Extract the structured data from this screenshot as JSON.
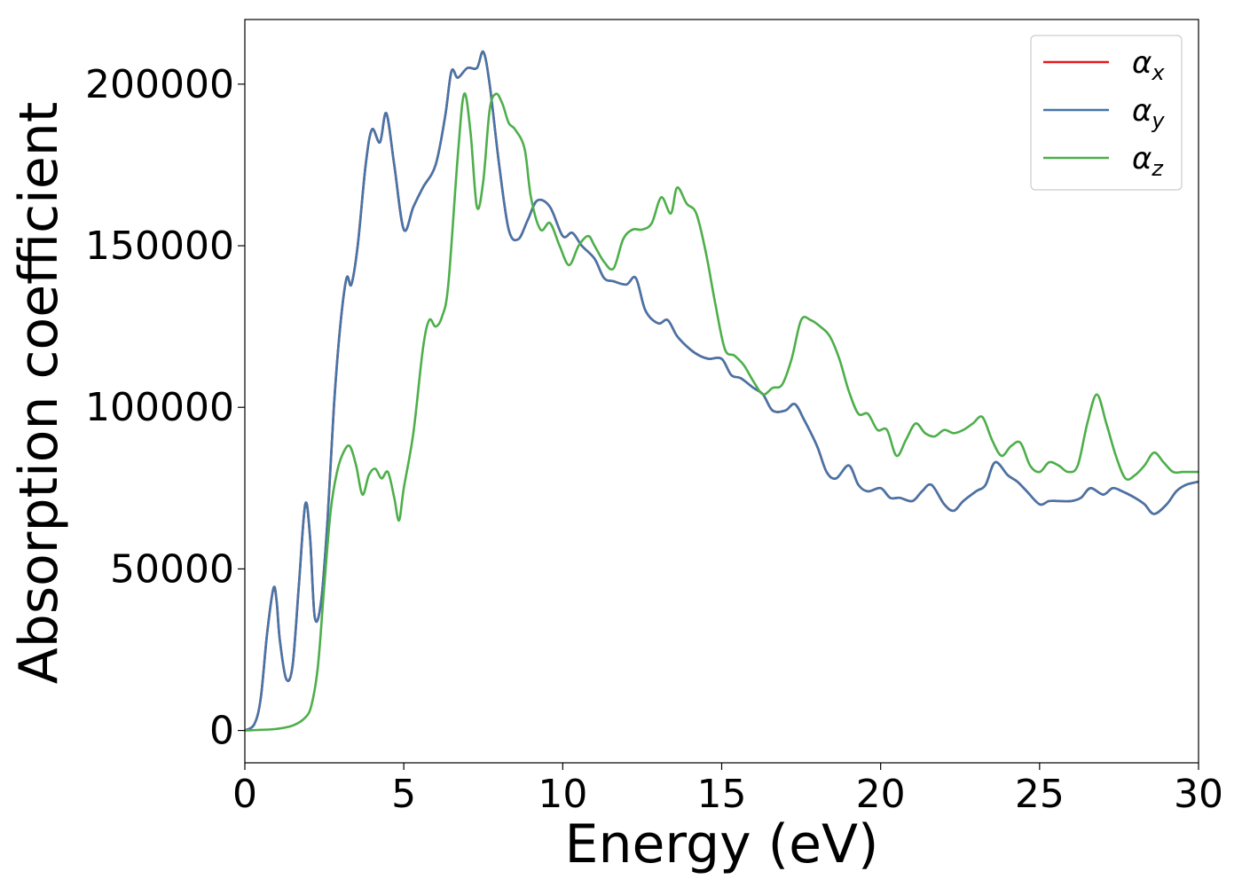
{
  "chart_data": {
    "type": "line",
    "title": "",
    "xlabel": "Energy (eV)",
    "ylabel": "Absorption coefficient",
    "xlim": [
      0,
      30
    ],
    "ylim": [
      -10000,
      220000
    ],
    "xticks": [
      0,
      5,
      10,
      15,
      20,
      25,
      30
    ],
    "xtick_labels": [
      "0",
      "5",
      "10",
      "15",
      "20",
      "25",
      "30"
    ],
    "yticks": [
      0,
      50000,
      100000,
      150000,
      200000
    ],
    "ytick_labels": [
      "0",
      "50000",
      "100000",
      "150000",
      "200000"
    ],
    "grid": false,
    "legend_position": "top-right",
    "series": [
      {
        "name": "α_x",
        "legend_symbol": "α",
        "legend_sub": "x",
        "color": "#e41a1c",
        "x": [
          0,
          0.3,
          0.5,
          0.7,
          0.9,
          1.0,
          1.1,
          1.3,
          1.5,
          1.7,
          1.9,
          2.05,
          2.2,
          2.4,
          2.6,
          2.8,
          3.0,
          3.2,
          3.35,
          3.55,
          3.8,
          4.0,
          4.25,
          4.45,
          4.7,
          5.0,
          5.3,
          5.6,
          6.0,
          6.3,
          6.5,
          6.7,
          7.0,
          7.3,
          7.5,
          7.7,
          8.0,
          8.3,
          8.6,
          8.9,
          9.2,
          9.6,
          10.0,
          10.3,
          10.6,
          11.0,
          11.3,
          11.6,
          12.0,
          12.3,
          12.6,
          13.0,
          13.3,
          13.6,
          14.0,
          14.3,
          14.6,
          15.0,
          15.3,
          15.6,
          16.0,
          16.3,
          16.6,
          17.0,
          17.3,
          17.6,
          18.0,
          18.3,
          18.6,
          19.0,
          19.3,
          19.6,
          20.0,
          20.3,
          20.6,
          21.0,
          21.3,
          21.6,
          22.0,
          22.3,
          22.6,
          23.0,
          23.3,
          23.6,
          24.0,
          24.3,
          24.6,
          25.0,
          25.3,
          25.6,
          26.0,
          26.3,
          26.6,
          27.0,
          27.3,
          27.6,
          28.0,
          28.3,
          28.6,
          29.0,
          29.3,
          29.6,
          30.0
        ],
        "values": [
          0,
          2000,
          10000,
          30000,
          44000,
          40000,
          28000,
          16000,
          20000,
          45000,
          70000,
          60000,
          35000,
          40000,
          65000,
          100000,
          125000,
          140000,
          138000,
          150000,
          175000,
          186000,
          182000,
          191000,
          175000,
          155000,
          162000,
          168000,
          175000,
          190000,
          204000,
          202000,
          205000,
          205000,
          210000,
          200000,
          175000,
          155000,
          152000,
          158000,
          164000,
          162000,
          153000,
          154000,
          150000,
          146000,
          140000,
          139000,
          138000,
          140000,
          130000,
          126000,
          127000,
          122000,
          118000,
          116000,
          115000,
          115000,
          110000,
          109000,
          106000,
          104000,
          99000,
          99000,
          101000,
          96000,
          88000,
          80000,
          78000,
          82000,
          76000,
          74000,
          75000,
          72000,
          72000,
          71000,
          74000,
          76000,
          70000,
          68000,
          71000,
          74000,
          76000,
          83000,
          79000,
          77000,
          74000,
          70000,
          71000,
          71000,
          71000,
          72000,
          75000,
          73000,
          75000,
          74000,
          72000,
          70000,
          67000,
          70000,
          74000,
          76000,
          77000
        ]
      },
      {
        "name": "α_y",
        "legend_symbol": "α",
        "legend_sub": "y",
        "color": "#4575a8",
        "x": [
          0,
          0.3,
          0.5,
          0.7,
          0.9,
          1.0,
          1.1,
          1.3,
          1.5,
          1.7,
          1.9,
          2.05,
          2.2,
          2.4,
          2.6,
          2.8,
          3.0,
          3.2,
          3.35,
          3.55,
          3.8,
          4.0,
          4.25,
          4.45,
          4.7,
          5.0,
          5.3,
          5.6,
          6.0,
          6.3,
          6.5,
          6.7,
          7.0,
          7.3,
          7.5,
          7.7,
          8.0,
          8.3,
          8.6,
          8.9,
          9.2,
          9.6,
          10.0,
          10.3,
          10.6,
          11.0,
          11.3,
          11.6,
          12.0,
          12.3,
          12.6,
          13.0,
          13.3,
          13.6,
          14.0,
          14.3,
          14.6,
          15.0,
          15.3,
          15.6,
          16.0,
          16.3,
          16.6,
          17.0,
          17.3,
          17.6,
          18.0,
          18.3,
          18.6,
          19.0,
          19.3,
          19.6,
          20.0,
          20.3,
          20.6,
          21.0,
          21.3,
          21.6,
          22.0,
          22.3,
          22.6,
          23.0,
          23.3,
          23.6,
          24.0,
          24.3,
          24.6,
          25.0,
          25.3,
          25.6,
          26.0,
          26.3,
          26.6,
          27.0,
          27.3,
          27.6,
          28.0,
          28.3,
          28.6,
          29.0,
          29.3,
          29.6,
          30.0
        ],
        "values": [
          0,
          2000,
          10000,
          30000,
          44000,
          40000,
          28000,
          16000,
          20000,
          45000,
          70000,
          60000,
          35000,
          40000,
          65000,
          100000,
          125000,
          140000,
          138000,
          150000,
          175000,
          186000,
          182000,
          191000,
          175000,
          155000,
          162000,
          168000,
          175000,
          190000,
          204000,
          202000,
          205000,
          205000,
          210000,
          200000,
          175000,
          155000,
          152000,
          158000,
          164000,
          162000,
          153000,
          154000,
          150000,
          146000,
          140000,
          139000,
          138000,
          140000,
          130000,
          126000,
          127000,
          122000,
          118000,
          116000,
          115000,
          115000,
          110000,
          109000,
          106000,
          104000,
          99000,
          99000,
          101000,
          96000,
          88000,
          80000,
          78000,
          82000,
          76000,
          74000,
          75000,
          72000,
          72000,
          71000,
          74000,
          76000,
          70000,
          68000,
          71000,
          74000,
          76000,
          83000,
          79000,
          77000,
          74000,
          70000,
          71000,
          71000,
          71000,
          72000,
          75000,
          73000,
          75000,
          74000,
          72000,
          70000,
          67000,
          70000,
          74000,
          76000,
          77000
        ]
      },
      {
        "name": "α_z",
        "legend_symbol": "α",
        "legend_sub": "z",
        "color": "#4daf4a",
        "x": [
          0,
          0.5,
          1.0,
          1.5,
          1.9,
          2.1,
          2.3,
          2.5,
          2.7,
          2.9,
          3.1,
          3.3,
          3.5,
          3.7,
          3.9,
          4.1,
          4.3,
          4.5,
          4.7,
          4.85,
          5.0,
          5.3,
          5.6,
          5.8,
          6.0,
          6.2,
          6.4,
          6.7,
          6.9,
          7.1,
          7.3,
          7.5,
          7.7,
          7.9,
          8.1,
          8.3,
          8.5,
          8.8,
          9.0,
          9.3,
          9.6,
          9.9,
          10.2,
          10.5,
          10.8,
          11.0,
          11.3,
          11.6,
          11.9,
          12.2,
          12.5,
          12.8,
          13.1,
          13.4,
          13.6,
          13.9,
          14.2,
          14.5,
          14.8,
          15.1,
          15.4,
          15.7,
          16.0,
          16.3,
          16.6,
          16.9,
          17.2,
          17.5,
          17.8,
          18.1,
          18.4,
          18.7,
          19.0,
          19.3,
          19.6,
          19.9,
          20.2,
          20.5,
          20.8,
          21.1,
          21.4,
          21.7,
          22.0,
          22.3,
          22.6,
          22.9,
          23.2,
          23.5,
          23.8,
          24.1,
          24.4,
          24.7,
          25.0,
          25.3,
          25.6,
          25.9,
          26.2,
          26.5,
          26.8,
          27.1,
          27.4,
          27.7,
          28.0,
          28.3,
          28.6,
          28.9,
          29.2,
          29.5,
          29.8,
          30.0
        ],
        "values": [
          0,
          200,
          500,
          1500,
          4000,
          8000,
          20000,
          45000,
          68000,
          80000,
          86000,
          88000,
          82000,
          73000,
          79000,
          81000,
          78000,
          80000,
          72000,
          65000,
          75000,
          92000,
          118000,
          127000,
          125000,
          128000,
          138000,
          178000,
          197000,
          185000,
          162000,
          170000,
          192000,
          197000,
          194000,
          188000,
          186000,
          180000,
          165000,
          155000,
          157000,
          150000,
          144000,
          150000,
          153000,
          150000,
          145000,
          143000,
          152000,
          155000,
          155000,
          157000,
          165000,
          160000,
          168000,
          163000,
          160000,
          148000,
          132000,
          118000,
          116000,
          113000,
          108000,
          104000,
          106000,
          107000,
          115000,
          127000,
          127000,
          125000,
          122000,
          115000,
          105000,
          98000,
          98000,
          93000,
          93000,
          85000,
          90000,
          95000,
          92000,
          91000,
          93000,
          92000,
          93000,
          95000,
          97000,
          90000,
          85000,
          88000,
          89000,
          82000,
          80000,
          83000,
          82000,
          80000,
          82000,
          95000,
          104000,
          95000,
          85000,
          78000,
          79000,
          82000,
          86000,
          83000,
          80000,
          80000,
          80000,
          80000
        ]
      }
    ]
  }
}
